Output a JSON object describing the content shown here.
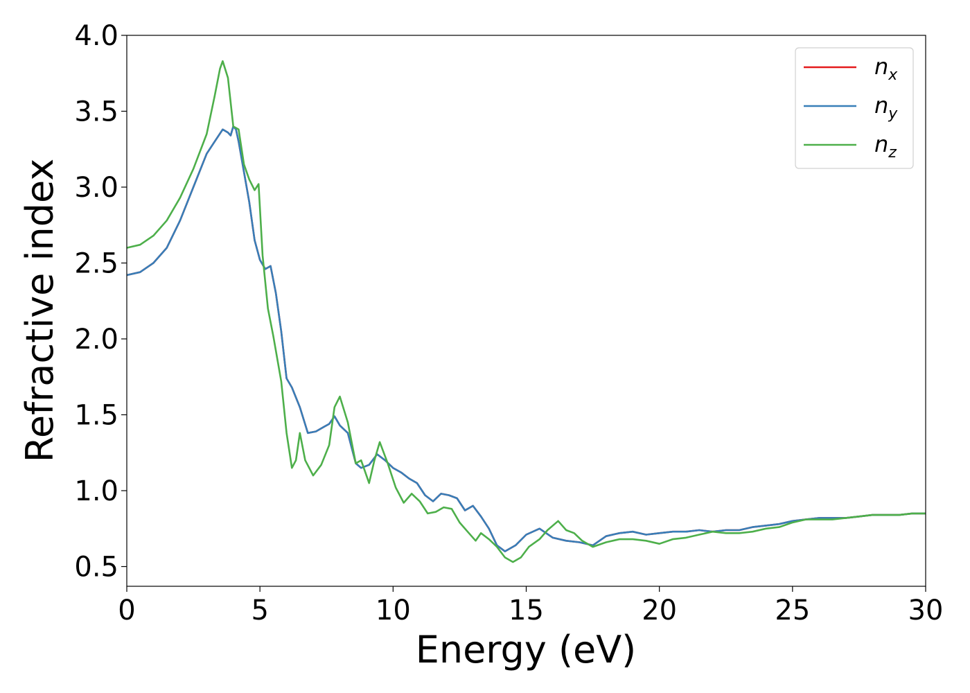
{
  "chart_data": {
    "type": "line",
    "title": "",
    "xlabel": "Energy (eV)",
    "ylabel": "Refractive index",
    "xlim": [
      0,
      30
    ],
    "ylim": [
      0.37,
      4.0
    ],
    "xticks": [
      0,
      5,
      10,
      15,
      20,
      25,
      30
    ],
    "yticks": [
      0.5,
      1.0,
      1.5,
      2.0,
      2.5,
      3.0,
      3.5,
      4.0
    ],
    "xtick_labels": [
      "0",
      "5",
      "10",
      "15",
      "20",
      "25",
      "30"
    ],
    "ytick_labels": [
      "0.5",
      "1.0",
      "1.5",
      "2.0",
      "2.5",
      "3.0",
      "3.5",
      "4.0"
    ],
    "grid": false,
    "legend_position": "top-right",
    "series": [
      {
        "name": "n",
        "subscript": "x",
        "color": "#e41a1c",
        "x": [
          0,
          0.5,
          1,
          1.5,
          2,
          2.5,
          3,
          3.3,
          3.6,
          3.8,
          3.9,
          4.0,
          4.1,
          4.2,
          4.4,
          4.6,
          4.8,
          5.0,
          5.2,
          5.4,
          5.6,
          5.8,
          6.0,
          6.2,
          6.5,
          6.8,
          7.1,
          7.4,
          7.6,
          7.8,
          8.0,
          8.3,
          8.6,
          8.8,
          9.1,
          9.4,
          9.7,
          10.0,
          10.3,
          10.6,
          10.9,
          11.2,
          11.5,
          11.8,
          12.1,
          12.4,
          12.7,
          13.0,
          13.3,
          13.6,
          13.9,
          14.2,
          14.6,
          15.0,
          15.5,
          16.0,
          16.5,
          17.0,
          17.5,
          18.0,
          18.5,
          19.0,
          19.5,
          20.0,
          20.5,
          21.0,
          21.5,
          22.0,
          22.5,
          23.0,
          23.5,
          24.0,
          24.5,
          25.0,
          25.5,
          26.0,
          26.5,
          27.0,
          27.5,
          28.0,
          28.5,
          29.0,
          29.5,
          30.0
        ],
        "y": [
          2.42,
          2.44,
          2.5,
          2.6,
          2.78,
          3.0,
          3.22,
          3.3,
          3.38,
          3.36,
          3.34,
          3.4,
          3.38,
          3.3,
          3.1,
          2.9,
          2.65,
          2.52,
          2.46,
          2.48,
          2.3,
          2.05,
          1.74,
          1.68,
          1.55,
          1.38,
          1.39,
          1.42,
          1.44,
          1.49,
          1.43,
          1.38,
          1.18,
          1.15,
          1.17,
          1.24,
          1.2,
          1.15,
          1.12,
          1.08,
          1.05,
          0.97,
          0.93,
          0.98,
          0.97,
          0.95,
          0.87,
          0.9,
          0.83,
          0.75,
          0.64,
          0.6,
          0.64,
          0.71,
          0.75,
          0.69,
          0.67,
          0.66,
          0.64,
          0.7,
          0.72,
          0.73,
          0.71,
          0.72,
          0.73,
          0.73,
          0.74,
          0.73,
          0.74,
          0.74,
          0.76,
          0.77,
          0.78,
          0.8,
          0.81,
          0.82,
          0.82,
          0.82,
          0.83,
          0.84,
          0.84,
          0.84,
          0.85,
          0.85
        ]
      },
      {
        "name": "n",
        "subscript": "y",
        "color": "#377eb8",
        "x": [
          0,
          0.5,
          1,
          1.5,
          2,
          2.5,
          3,
          3.3,
          3.6,
          3.8,
          3.9,
          4.0,
          4.1,
          4.2,
          4.4,
          4.6,
          4.8,
          5.0,
          5.2,
          5.4,
          5.6,
          5.8,
          6.0,
          6.2,
          6.5,
          6.8,
          7.1,
          7.4,
          7.6,
          7.8,
          8.0,
          8.3,
          8.6,
          8.8,
          9.1,
          9.4,
          9.7,
          10.0,
          10.3,
          10.6,
          10.9,
          11.2,
          11.5,
          11.8,
          12.1,
          12.4,
          12.7,
          13.0,
          13.3,
          13.6,
          13.9,
          14.2,
          14.6,
          15.0,
          15.5,
          16.0,
          16.5,
          17.0,
          17.5,
          18.0,
          18.5,
          19.0,
          19.5,
          20.0,
          20.5,
          21.0,
          21.5,
          22.0,
          22.5,
          23.0,
          23.5,
          24.0,
          24.5,
          25.0,
          25.5,
          26.0,
          26.5,
          27.0,
          27.5,
          28.0,
          28.5,
          29.0,
          29.5,
          30.0
        ],
        "y": [
          2.42,
          2.44,
          2.5,
          2.6,
          2.78,
          3.0,
          3.22,
          3.3,
          3.38,
          3.36,
          3.34,
          3.4,
          3.38,
          3.3,
          3.1,
          2.9,
          2.65,
          2.52,
          2.46,
          2.48,
          2.3,
          2.05,
          1.74,
          1.68,
          1.55,
          1.38,
          1.39,
          1.42,
          1.44,
          1.49,
          1.43,
          1.38,
          1.18,
          1.15,
          1.17,
          1.24,
          1.2,
          1.15,
          1.12,
          1.08,
          1.05,
          0.97,
          0.93,
          0.98,
          0.97,
          0.95,
          0.87,
          0.9,
          0.83,
          0.75,
          0.64,
          0.6,
          0.64,
          0.71,
          0.75,
          0.69,
          0.67,
          0.66,
          0.64,
          0.7,
          0.72,
          0.73,
          0.71,
          0.72,
          0.73,
          0.73,
          0.74,
          0.73,
          0.74,
          0.74,
          0.76,
          0.77,
          0.78,
          0.8,
          0.81,
          0.82,
          0.82,
          0.82,
          0.83,
          0.84,
          0.84,
          0.84,
          0.85,
          0.85
        ]
      },
      {
        "name": "n",
        "subscript": "z",
        "color": "#4daf4a",
        "x": [
          0,
          0.5,
          1,
          1.5,
          2,
          2.5,
          3,
          3.3,
          3.5,
          3.6,
          3.8,
          4.0,
          4.2,
          4.4,
          4.6,
          4.8,
          4.95,
          5.1,
          5.3,
          5.5,
          5.8,
          6.0,
          6.2,
          6.35,
          6.5,
          6.7,
          7.0,
          7.3,
          7.6,
          7.8,
          8.0,
          8.3,
          8.6,
          8.8,
          9.1,
          9.3,
          9.5,
          9.8,
          10.1,
          10.4,
          10.7,
          11.0,
          11.3,
          11.6,
          11.9,
          12.2,
          12.5,
          12.8,
          13.1,
          13.3,
          13.6,
          13.9,
          14.2,
          14.5,
          14.8,
          15.1,
          15.5,
          15.8,
          16.2,
          16.5,
          16.8,
          17.1,
          17.5,
          18.0,
          18.5,
          19.0,
          19.5,
          20.0,
          20.5,
          21.0,
          21.5,
          22.0,
          22.5,
          23.0,
          23.5,
          24.0,
          24.5,
          25.0,
          25.5,
          26.0,
          26.5,
          27.0,
          27.5,
          28.0,
          28.5,
          29.0,
          29.5,
          30.0
        ],
        "y": [
          2.6,
          2.62,
          2.68,
          2.78,
          2.93,
          3.12,
          3.35,
          3.6,
          3.78,
          3.83,
          3.72,
          3.4,
          3.38,
          3.15,
          3.05,
          2.98,
          3.02,
          2.55,
          2.2,
          2.02,
          1.72,
          1.38,
          1.15,
          1.2,
          1.38,
          1.2,
          1.1,
          1.17,
          1.3,
          1.55,
          1.62,
          1.45,
          1.18,
          1.2,
          1.05,
          1.2,
          1.32,
          1.18,
          1.02,
          0.92,
          0.98,
          0.93,
          0.85,
          0.86,
          0.89,
          0.88,
          0.79,
          0.73,
          0.67,
          0.72,
          0.68,
          0.63,
          0.56,
          0.53,
          0.56,
          0.63,
          0.68,
          0.74,
          0.8,
          0.74,
          0.72,
          0.67,
          0.63,
          0.66,
          0.68,
          0.68,
          0.67,
          0.65,
          0.68,
          0.69,
          0.71,
          0.73,
          0.72,
          0.72,
          0.73,
          0.75,
          0.76,
          0.79,
          0.81,
          0.81,
          0.81,
          0.82,
          0.83,
          0.84,
          0.84,
          0.84,
          0.85,
          0.85
        ]
      }
    ]
  }
}
